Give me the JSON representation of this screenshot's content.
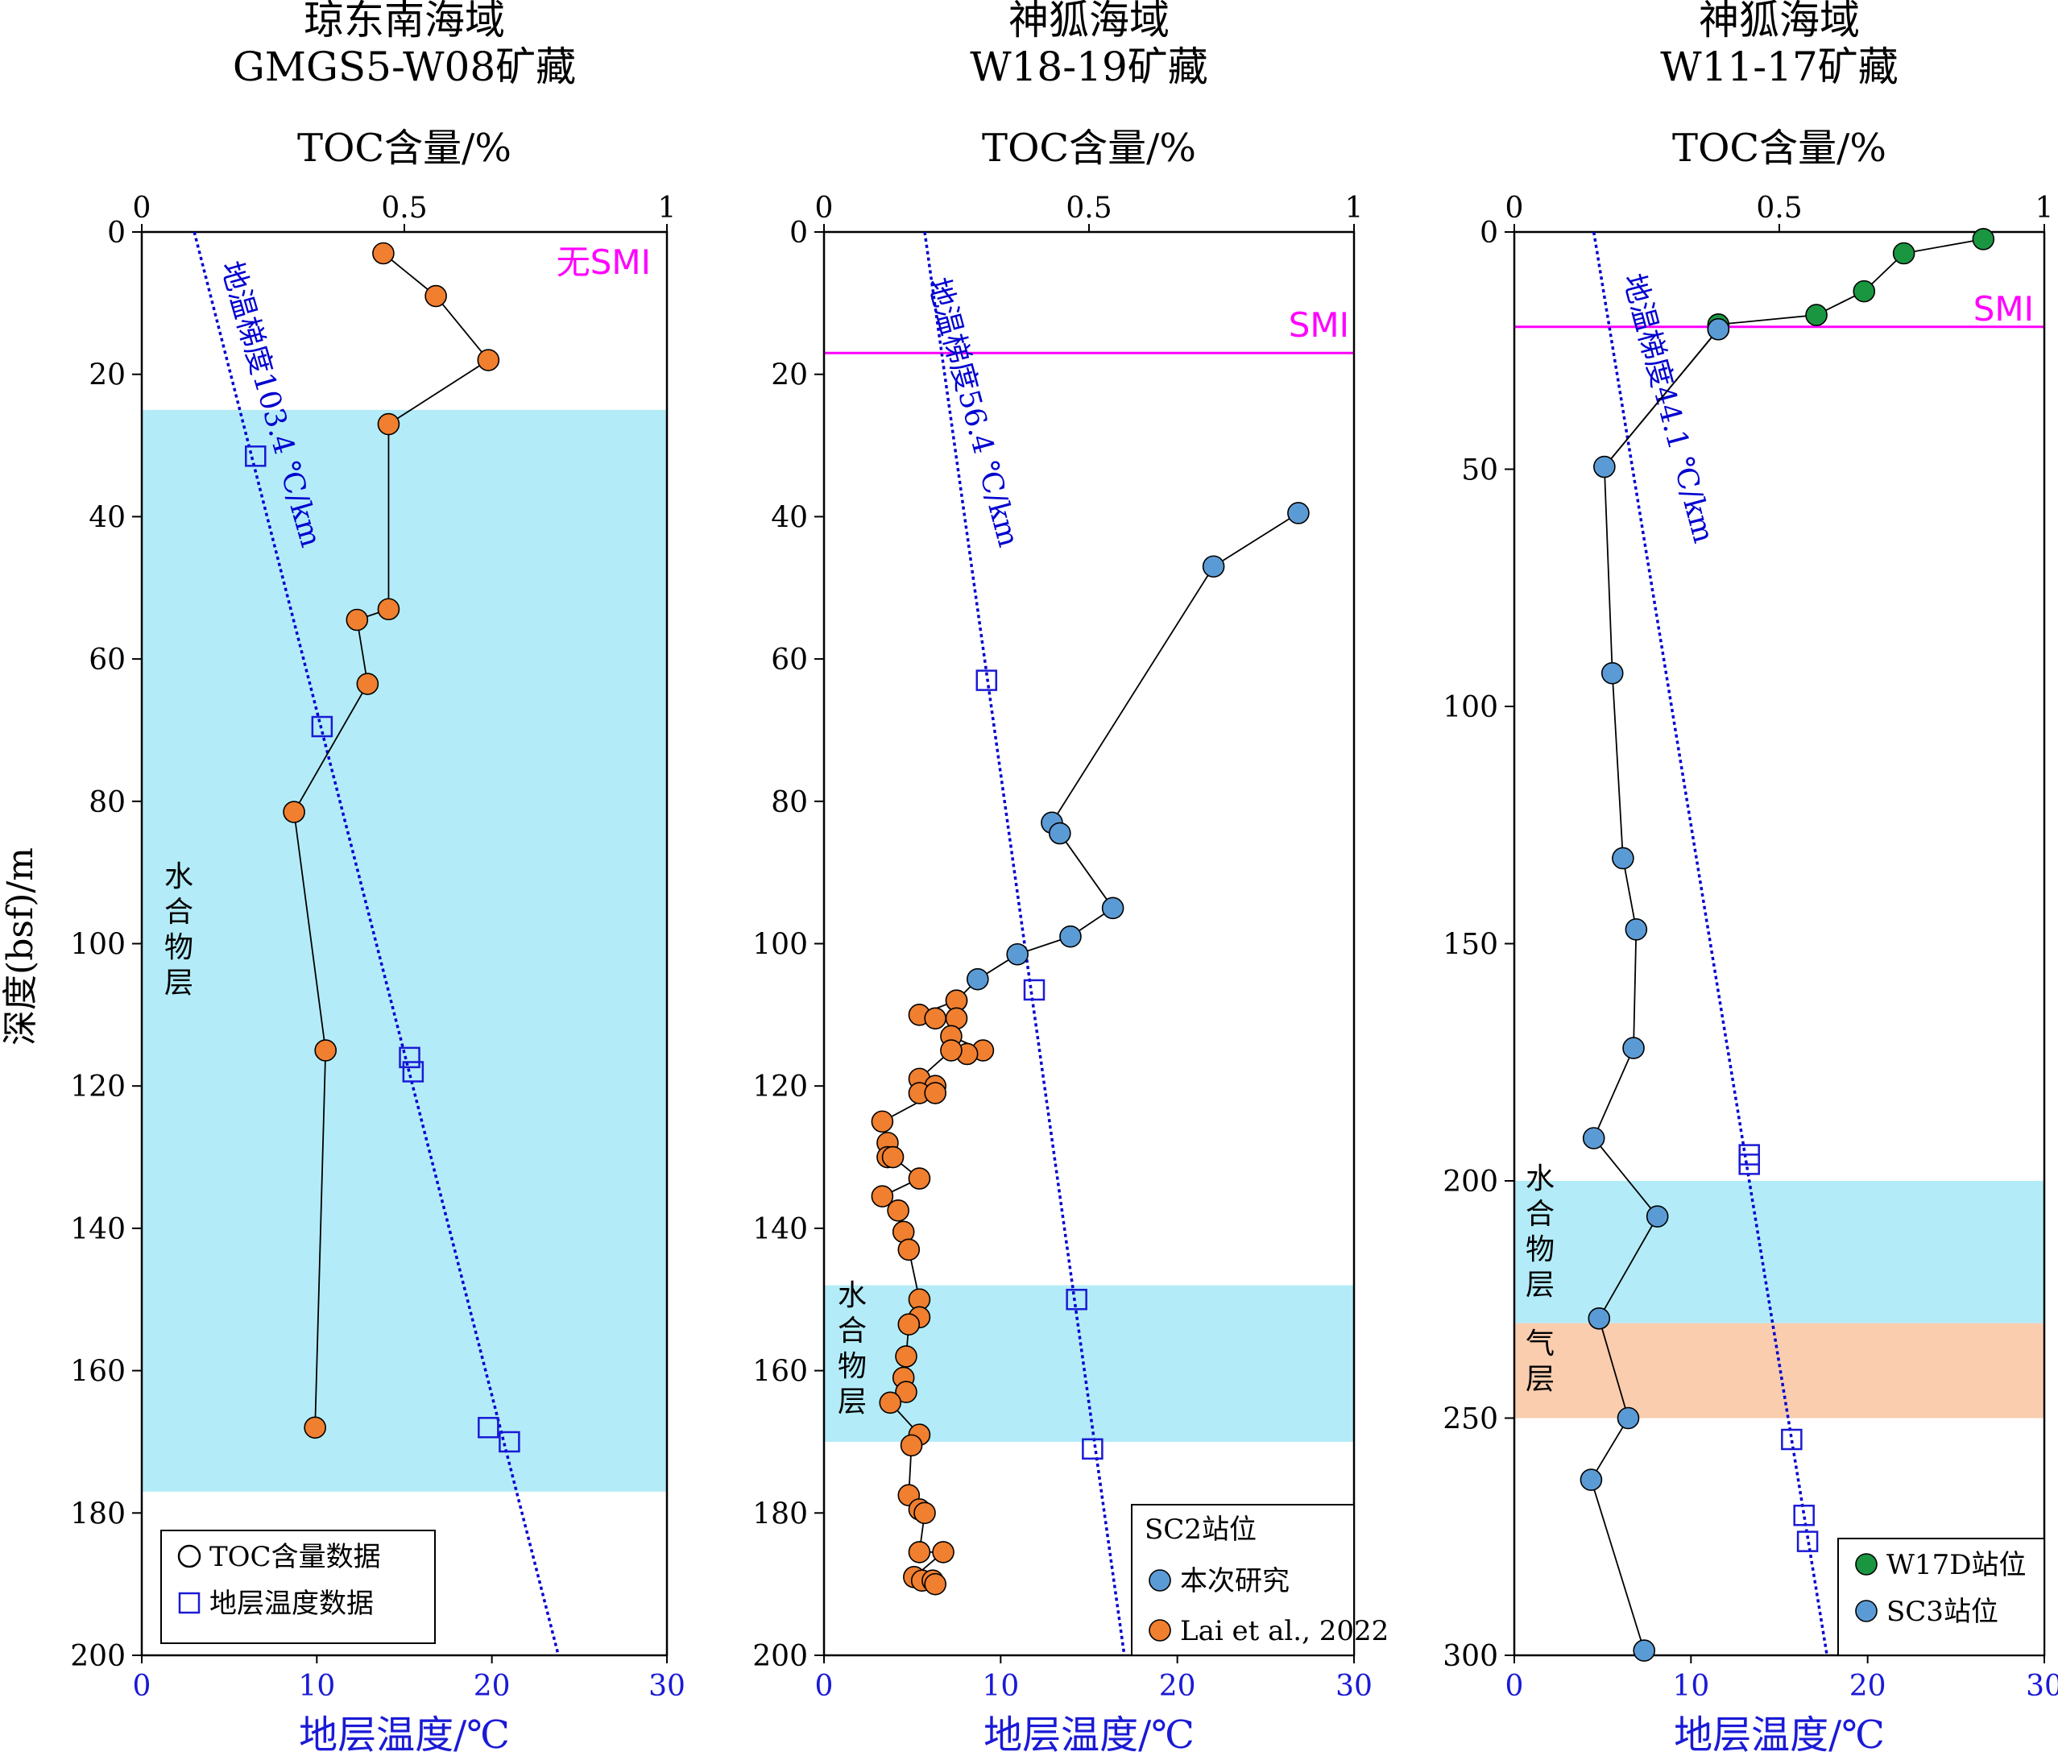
{
  "y_axis_label": "深度(bsf)/m",
  "chart_data": [
    {
      "type": "scatter",
      "title": "琼东南海域",
      "subtitle": "GMGS5-W08矿藏",
      "top_axis": {
        "label": "TOC含量/%",
        "range": [
          0,
          1
        ],
        "ticks": [
          0,
          0.5,
          1
        ],
        "tick_labels": [
          "0",
          "0.5",
          "1"
        ]
      },
      "bottom_axis": {
        "label": "地层温度/℃",
        "range": [
          0,
          30
        ],
        "ticks": [
          0,
          10,
          20,
          30
        ],
        "tick_labels": [
          "0",
          "10",
          "20",
          "30"
        ]
      },
      "depth_axis": {
        "range": [
          0,
          200
        ],
        "ticks": [
          0,
          20,
          40,
          60,
          80,
          100,
          120,
          140,
          160,
          180,
          200
        ],
        "tick_labels": [
          "0",
          "20",
          "40",
          "60",
          "80",
          "100",
          "120",
          "140",
          "160",
          "180",
          "200"
        ]
      },
      "zones": [
        {
          "name": "水合物层",
          "from": 25,
          "to": 177,
          "color": "#b3ecf8"
        }
      ],
      "smi": {
        "label": "无SMI",
        "depth": null,
        "color": "#ff00ff"
      },
      "gradient": {
        "label": "地温梯度103.4 ℃/km",
        "color": "#0000d0",
        "from": {
          "temp": 3.0,
          "depth": 0
        },
        "to": {
          "temp": 23.8,
          "depth": 200
        }
      },
      "toc_series": [
        {
          "name": "",
          "color": "#f07f2f",
          "connected": true,
          "points": [
            [
              0.46,
              3
            ],
            [
              0.56,
              9
            ],
            [
              0.66,
              18
            ],
            [
              0.47,
              27
            ],
            [
              0.47,
              53
            ],
            [
              0.41,
              54.5
            ],
            [
              0.43,
              63.5
            ],
            [
              0.29,
              81.5
            ],
            [
              0.35,
              115
            ],
            [
              0.33,
              168
            ]
          ]
        }
      ],
      "temp_points": [
        [
          6.5,
          31.5
        ],
        [
          10.3,
          69.5
        ],
        [
          15.3,
          116
        ],
        [
          15.5,
          118
        ],
        [
          19.8,
          168
        ],
        [
          21.0,
          170
        ]
      ],
      "legend": {
        "position": "bottom-left",
        "entries": [
          {
            "marker": "circle-open",
            "label": "TOC含量数据"
          },
          {
            "marker": "square-open",
            "label": "地层温度数据"
          }
        ]
      }
    },
    {
      "type": "scatter",
      "title": "神狐海域",
      "subtitle": "W18-19矿藏",
      "top_axis": {
        "label": "TOC含量/%",
        "range": [
          0,
          1
        ],
        "ticks": [
          0,
          0.5,
          1
        ],
        "tick_labels": [
          "0",
          "0.5",
          "1"
        ]
      },
      "bottom_axis": {
        "label": "地层温度/℃",
        "range": [
          0,
          30
        ],
        "ticks": [
          0,
          10,
          20,
          30
        ],
        "tick_labels": [
          "0",
          "10",
          "20",
          "30"
        ]
      },
      "depth_axis": {
        "range": [
          0,
          200
        ],
        "ticks": [
          0,
          20,
          40,
          60,
          80,
          100,
          120,
          140,
          160,
          180,
          200
        ],
        "tick_labels": [
          "0",
          "20",
          "40",
          "60",
          "80",
          "100",
          "120",
          "140",
          "160",
          "180",
          "200"
        ]
      },
      "zones": [
        {
          "name": "水合物层",
          "from": 148,
          "to": 170,
          "color": "#b3ecf8"
        }
      ],
      "smi": {
        "label": "SMI",
        "depth": 17,
        "color": "#ff00ff"
      },
      "gradient": {
        "label": "地温梯度56.4 ℃/km",
        "color": "#0000d0",
        "from": {
          "temp": 5.7,
          "depth": 0
        },
        "to": {
          "temp": 17.0,
          "depth": 200
        }
      },
      "toc_series": [
        {
          "name": "本次研究",
          "color": "#5b9bd5",
          "connected": true,
          "points": [
            [
              0.895,
              39.5
            ],
            [
              0.735,
              47
            ],
            [
              0.43,
              83
            ],
            [
              0.445,
              84.5
            ],
            [
              0.545,
              95
            ],
            [
              0.465,
              99
            ],
            [
              0.365,
              101.5
            ],
            [
              0.29,
              105
            ],
            [
              0.25,
              108
            ]
          ]
        },
        {
          "name": "Lai et al., 2022",
          "color": "#f07f2f",
          "connected": true,
          "points": [
            [
              0.25,
              108
            ],
            [
              0.18,
              110
            ],
            [
              0.21,
              110.5
            ],
            [
              0.25,
              110.5
            ],
            [
              0.24,
              113
            ],
            [
              0.3,
              115
            ],
            [
              0.27,
              115.5
            ],
            [
              0.24,
              115
            ],
            [
              0.18,
              119
            ],
            [
              0.21,
              120
            ],
            [
              0.18,
              121
            ],
            [
              0.21,
              121
            ],
            [
              0.11,
              125
            ],
            [
              0.12,
              128
            ],
            [
              0.12,
              130
            ],
            [
              0.13,
              130
            ],
            [
              0.18,
              133
            ],
            [
              0.11,
              135.5
            ],
            [
              0.14,
              137.5
            ],
            [
              0.15,
              140.5
            ],
            [
              0.16,
              143
            ],
            [
              0.18,
              150
            ],
            [
              0.18,
              152.5
            ],
            [
              0.16,
              153.5
            ],
            [
              0.155,
              158
            ],
            [
              0.15,
              161
            ],
            [
              0.155,
              163
            ],
            [
              0.125,
              164.5
            ],
            [
              0.18,
              169
            ],
            [
              0.165,
              170.5
            ],
            [
              0.16,
              177.5
            ],
            [
              0.18,
              179.5
            ],
            [
              0.19,
              180
            ],
            [
              0.18,
              185.5
            ],
            [
              0.225,
              185.5
            ],
            [
              0.17,
              189
            ],
            [
              0.185,
              189.5
            ],
            [
              0.205,
              189.5
            ],
            [
              0.21,
              190
            ]
          ]
        }
      ],
      "temp_points": [
        [
          9.2,
          63
        ],
        [
          11.9,
          106.5
        ],
        [
          14.3,
          150
        ],
        [
          15.2,
          171
        ]
      ],
      "legend": {
        "position": "bottom-right",
        "title": "SC2站位",
        "entries": [
          {
            "marker": "circle-filled",
            "color": "#5b9bd5",
            "label": "本次研究"
          },
          {
            "marker": "circle-filled",
            "color": "#f07f2f",
            "label": "Lai et al., 2022"
          }
        ]
      }
    },
    {
      "type": "scatter",
      "title": "神狐海域",
      "subtitle": "W11-17矿藏",
      "top_axis": {
        "label": "TOC含量/%",
        "range": [
          0,
          1
        ],
        "ticks": [
          0,
          0.5,
          1
        ],
        "tick_labels": [
          "0",
          "0.5",
          "1"
        ]
      },
      "bottom_axis": {
        "label": "地层温度/℃",
        "range": [
          0,
          30
        ],
        "ticks": [
          0,
          10,
          20,
          30
        ],
        "tick_labels": [
          "0",
          "10",
          "20",
          "30"
        ]
      },
      "depth_axis": {
        "range": [
          0,
          300
        ],
        "ticks": [
          0,
          50,
          100,
          150,
          200,
          250,
          300
        ],
        "tick_labels": [
          "0",
          "50",
          "100",
          "150",
          "200",
          "250",
          "300"
        ]
      },
      "zones": [
        {
          "name": "水合物层",
          "from": 200,
          "to": 230,
          "color": "#b3ecf8"
        },
        {
          "name": "气层",
          "from": 230,
          "to": 250,
          "color": "#f9cdae"
        }
      ],
      "smi": {
        "label": "SMI",
        "depth": 20,
        "color": "#ff00ff"
      },
      "gradient": {
        "label": "地温梯度44.1 ℃/km",
        "color": "#0000d0",
        "from": {
          "temp": 4.5,
          "depth": 0
        },
        "to": {
          "temp": 17.7,
          "depth": 300
        }
      },
      "toc_series": [
        {
          "name": "W17D站位",
          "color": "#1a9641",
          "connected": true,
          "points": [
            [
              0.885,
              1.5
            ],
            [
              0.735,
              4.5
            ],
            [
              0.66,
              12.5
            ],
            [
              0.57,
              17.5
            ],
            [
              0.385,
              19.5
            ],
            [
              0.385,
              20.5
            ]
          ]
        },
        {
          "name": "SC3站位",
          "color": "#5b9bd5",
          "connected": true,
          "points": [
            [
              0.385,
              20.5
            ],
            [
              0.17,
              49.5
            ],
            [
              0.185,
              93
            ],
            [
              0.205,
              132
            ],
            [
              0.23,
              147
            ],
            [
              0.225,
              172
            ],
            [
              0.15,
              191
            ],
            [
              0.27,
              207.5
            ],
            [
              0.16,
              229
            ],
            [
              0.215,
              250
            ],
            [
              0.145,
              263
            ],
            [
              0.245,
              299
            ]
          ]
        }
      ],
      "toc_links": [
        [
          [
            0.385,
            20.5
          ],
          [
            0.17,
            49.5
          ]
        ]
      ],
      "temp_points": [
        [
          13.3,
          194.5
        ],
        [
          13.3,
          196.5
        ],
        [
          15.7,
          254.5
        ],
        [
          16.4,
          270.5
        ],
        [
          16.6,
          276
        ]
      ],
      "legend": {
        "position": "bottom-right",
        "entries": [
          {
            "marker": "circle-filled",
            "color": "#1a9641",
            "label": "W17D站位"
          },
          {
            "marker": "circle-filled",
            "color": "#5b9bd5",
            "label": "SC3站位"
          }
        ]
      }
    }
  ]
}
